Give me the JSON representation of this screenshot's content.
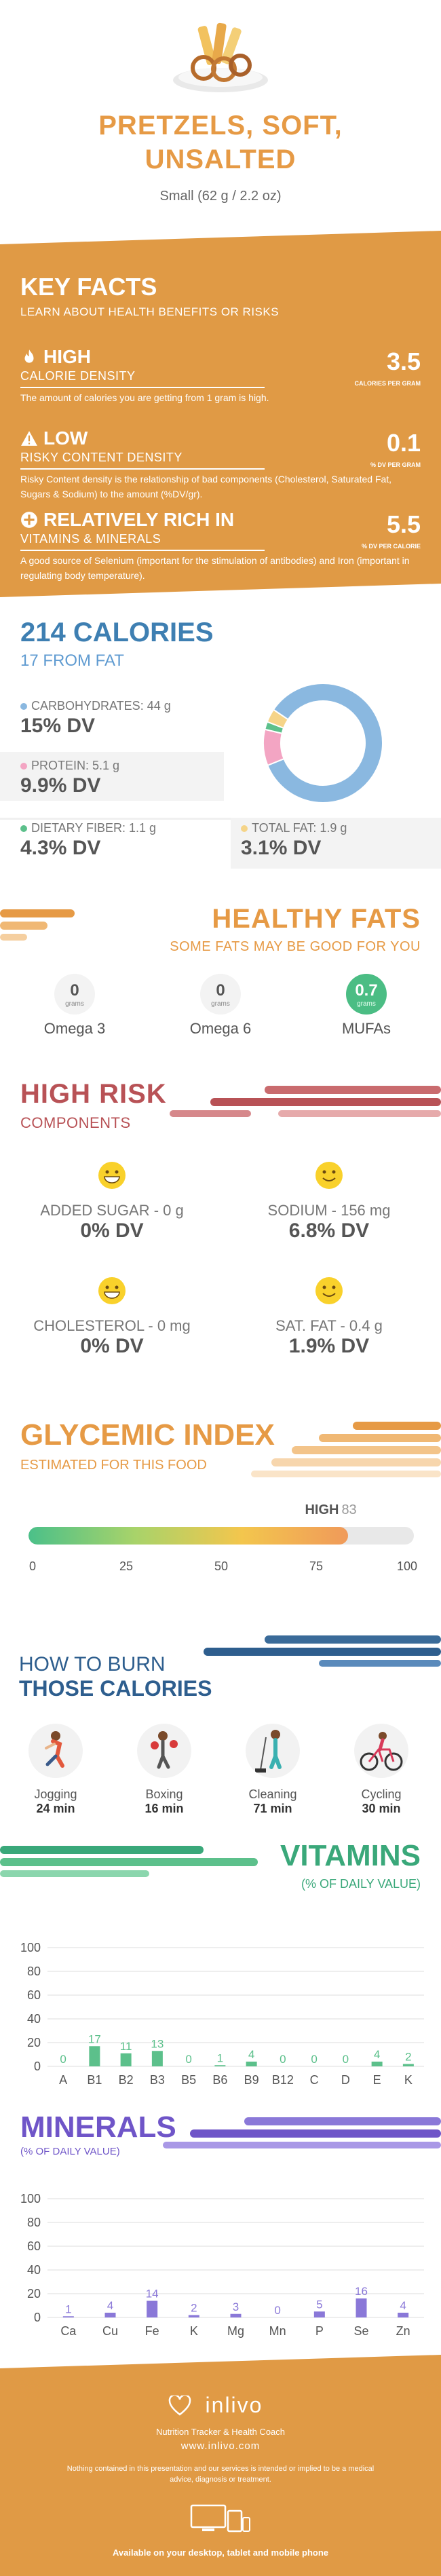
{
  "hero": {
    "title_line1": "PRETZELS, SOFT,",
    "title_line2": "UNSALTED",
    "serving": "Small (62 g / 2.2 oz)"
  },
  "key_facts": {
    "title": "KEY FACTS",
    "subtitle": "LEARN ABOUT HEALTH BENEFITS OR RISKS",
    "facts": [
      {
        "badge": "HIGH",
        "sub": "CALORIE DENSITY",
        "desc": "The amount of calories you are getting from 1 gram is high.",
        "value": "3.5",
        "unit": "CALORIES PER GRAM",
        "icon": "fire-icon"
      },
      {
        "badge": "LOW",
        "sub": "RISKY CONTENT DENSITY",
        "desc": "Risky Content density is the relationship of bad components (Cholesterol, Saturated Fat, Sugars & Sodium) to the amount (%DV/gr).",
        "value": "0.1",
        "unit": "% DV PER GRAM",
        "icon": "warning-icon"
      },
      {
        "badge": "RELATIVELY RICH  IN",
        "sub": "VITAMINS & MINERALS",
        "desc": "A good source of Selenium (important for the stimulation of antibodies) and Iron (important in regulating body temperature).",
        "value": "5.5",
        "unit": "% DV PER CALORIE",
        "icon": "plus-icon"
      }
    ]
  },
  "calories": {
    "title": "214 CALORIES",
    "from_fat": "17 FROM FAT",
    "carbs": {
      "label": "CARBOHYDRATES: 44 g",
      "dv": "15% DV",
      "color": "#8ab8e0"
    },
    "protein": {
      "label": "PROTEIN: 5.1 g",
      "dv": "9.9% DV",
      "color": "#f3a5c3"
    },
    "fiber": {
      "label": "DIETARY FIBER: 1.1 g",
      "dv": "4.3% DV",
      "color": "#5cc08b"
    },
    "fat": {
      "label": "TOTAL FAT: 1.9 g",
      "dv": "3.1% DV",
      "color": "#f5d488"
    },
    "donut": [
      {
        "name": "carbohydrates",
        "value": 44,
        "color": "#8ab8e0"
      },
      {
        "name": "protein",
        "value": 5.1,
        "color": "#f3a5c3"
      },
      {
        "name": "fiber",
        "value": 1.1,
        "color": "#5cc08b"
      },
      {
        "name": "fat",
        "value": 1.9,
        "color": "#f5d488"
      }
    ]
  },
  "healthy_fats": {
    "title": "HEALTHY FATS",
    "subtitle": "SOME FATS MAY BE GOOD FOR YOU",
    "items": [
      {
        "value": "0",
        "unit": "grams",
        "name": "Omega 3"
      },
      {
        "value": "0",
        "unit": "grams",
        "name": "Omega 6"
      },
      {
        "value": "0.7",
        "unit": "grams",
        "name": "MUFAs"
      }
    ]
  },
  "high_risk": {
    "title": "HIGH RISK",
    "subtitle": "COMPONENTS",
    "items": [
      {
        "name": "ADDED SUGAR - 0 g",
        "dv": "0% DV",
        "face": "grin-face-icon"
      },
      {
        "name": "SODIUM - 156 mg",
        "dv": "6.8% DV",
        "face": "smile-face-icon"
      },
      {
        "name": "CHOLESTEROL - 0 mg",
        "dv": "0% DV",
        "face": "grin-face-icon"
      },
      {
        "name": "SAT. FAT - 0.4 g",
        "dv": "1.9% DV",
        "face": "smile-face-icon"
      }
    ]
  },
  "glycemic": {
    "title": "GLYCEMIC INDEX",
    "subtitle": "ESTIMATED FOR THIS FOOD",
    "level": "HIGH",
    "value": 83,
    "ticks": [
      "0",
      "25",
      "50",
      "75",
      "100"
    ]
  },
  "burn": {
    "title1": "HOW TO BURN",
    "title2": "THOSE CALORIES",
    "activities": [
      {
        "name": "Jogging",
        "minutes": "24 min"
      },
      {
        "name": "Boxing",
        "minutes": "16 min"
      },
      {
        "name": "Cleaning",
        "minutes": "71 min"
      },
      {
        "name": "Cycling",
        "minutes": "30 min"
      }
    ]
  },
  "vitamins": {
    "title": "VITAMINS",
    "subtitle": "(% OF DAILY VALUE)",
    "color": "#5cc08b"
  },
  "minerals": {
    "title": "MINERALS",
    "subtitle": "(% OF DAILY VALUE)",
    "color": "#8a78d8"
  },
  "chart_data": [
    {
      "type": "bar",
      "title": "VITAMINS",
      "ylabel": "(% OF DAILY VALUE)",
      "categories": [
        "A",
        "B1",
        "B2",
        "B3",
        "B5",
        "B6",
        "B9",
        "B12",
        "C",
        "D",
        "E",
        "K"
      ],
      "values": [
        0,
        17,
        11,
        13,
        0,
        1,
        4,
        0,
        0,
        0,
        4,
        2
      ],
      "yticks": [
        "0",
        "20",
        "40",
        "60",
        "80",
        "100"
      ],
      "ylim": [
        0,
        100
      ]
    },
    {
      "type": "bar",
      "title": "MINERALS",
      "ylabel": "(% OF DAILY VALUE)",
      "categories": [
        "Ca",
        "Cu",
        "Fe",
        "K",
        "Mg",
        "Mn",
        "P",
        "Se",
        "Zn"
      ],
      "values": [
        1,
        4,
        14,
        2,
        3,
        0,
        5,
        16,
        4
      ],
      "yticks": [
        "0",
        "20",
        "40",
        "60",
        "80",
        "100"
      ],
      "ylim": [
        0,
        100
      ]
    }
  ],
  "footer": {
    "brand": "inlivo",
    "tagline": "Nutrition Tracker & Health Coach",
    "url": "www.inlivo.com",
    "disclaimer": "Nothing contained in this presentation and our services is intended or implied to be a medical advice, diagnosis or treatment.",
    "available": "Available on your desktop, tablet and mobile phone"
  }
}
